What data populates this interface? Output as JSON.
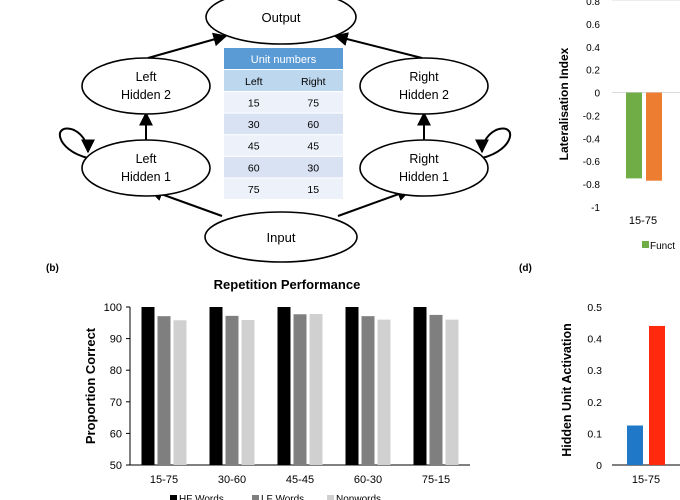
{
  "network": {
    "nodes": {
      "output": "Output",
      "left_hidden_2": [
        "Left",
        "Hidden 2"
      ],
      "right_hidden_2": [
        "Right",
        "Hidden 2"
      ],
      "left_hidden_1": [
        "Left",
        "Hidden 1"
      ],
      "right_hidden_1": [
        "Right",
        "Hidden 1"
      ],
      "input": "Input"
    },
    "unit_table": {
      "title": "Unit numbers",
      "headers": [
        "Left",
        "Right"
      ],
      "rows": [
        [
          "15",
          "75"
        ],
        [
          "30",
          "60"
        ],
        [
          "45",
          "45"
        ],
        [
          "60",
          "30"
        ],
        [
          "75",
          "15"
        ]
      ]
    },
    "colors": {
      "table_header": "#5b9bd5",
      "table_subheader": "#bdd7ee",
      "row_dark": "#d9e2f3",
      "row_light": "#edf2fa"
    }
  },
  "panel_labels": {
    "b": "(b)",
    "d": "(d)"
  },
  "chart_data": [
    {
      "id": "repetition",
      "type": "bar",
      "title": "Repetition Performance",
      "xlabel": "",
      "ylabel": "Proportion Correct",
      "categories": [
        "15-75",
        "30-60",
        "45-45",
        "60-30",
        "75-15"
      ],
      "ylim": [
        50,
        100
      ],
      "yticks": [
        50,
        60,
        70,
        80,
        90,
        100
      ],
      "series": [
        {
          "name": "HF Words",
          "color": "#000000",
          "values": [
            100,
            100,
            100,
            100,
            100
          ]
        },
        {
          "name": "LF Words",
          "color": "#7f7f7f",
          "values": [
            97.1,
            97.2,
            97.7,
            97.1,
            97.5
          ]
        },
        {
          "name": "Nonwords",
          "color": "#d0d0d0",
          "values": [
            95.8,
            95.9,
            97.8,
            96.0,
            96.0
          ]
        }
      ],
      "legend_labels": [
        "HF Words",
        "LF Words",
        "Nonwords"
      ],
      "legend_position": "bottom",
      "grid": false
    },
    {
      "id": "lateralisation",
      "type": "bar",
      "title": "",
      "ylabel": "Lateralisation Index",
      "categories": [
        "15-75"
      ],
      "ylim": [
        -1,
        0.8
      ],
      "yticks": [
        0.8,
        0.6,
        0.4,
        0.2,
        0,
        -0.2,
        -0.4,
        -0.6,
        -0.8,
        -1
      ],
      "ytick_labels": [
        "0.8",
        "0.6",
        "0.4",
        "0.2",
        "0",
        "-0.2",
        "-0.4",
        "-0.6",
        "-0.8",
        "-1"
      ],
      "series": [
        {
          "color": "#70ad47",
          "values": [
            -0.75
          ]
        },
        {
          "color": "#ed7d31",
          "values": [
            -0.77
          ]
        }
      ],
      "legend_text": "Funct",
      "legend_color": "#70ad47",
      "legend_position": "bottom"
    },
    {
      "id": "activation",
      "type": "bar",
      "title": "",
      "ylabel": "Hidden Unit Activation",
      "categories": [
        "15-75"
      ],
      "ylim": [
        0,
        0.5
      ],
      "yticks": [
        0,
        0.1,
        0.2,
        0.3,
        0.4,
        0.5
      ],
      "series": [
        {
          "color": "#1f78c8",
          "values": [
            0.125
          ]
        },
        {
          "color": "#ff2a0e",
          "values": [
            0.44
          ]
        }
      ]
    }
  ]
}
